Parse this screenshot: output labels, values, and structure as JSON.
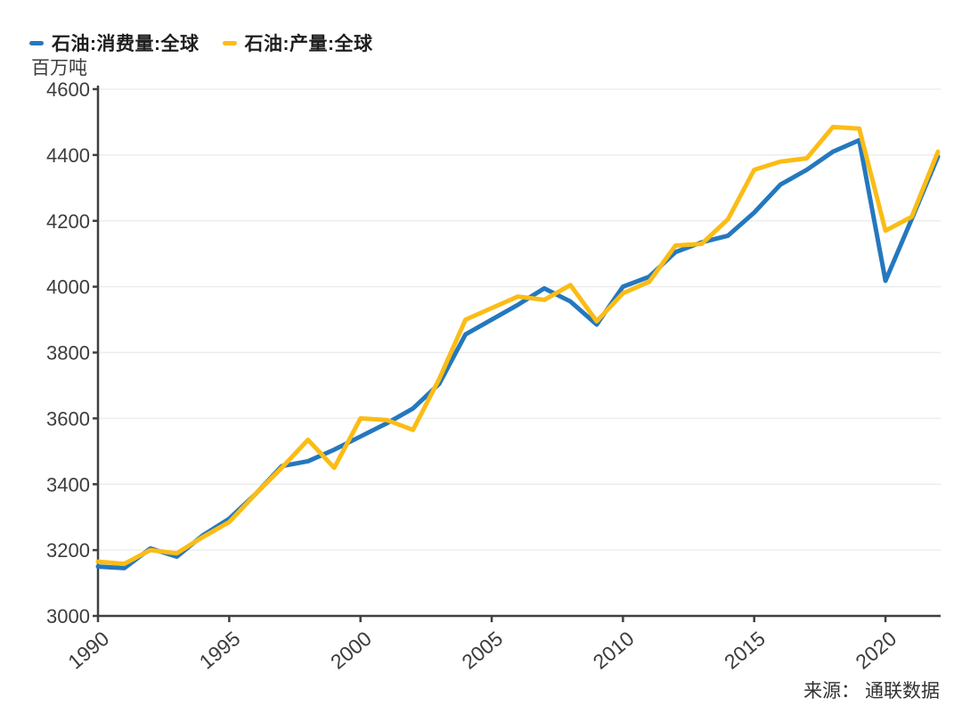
{
  "source": {
    "label": "来源： 通联数据"
  },
  "colors": {
    "consumption_line": "#2478be",
    "production_line": "#fbbc16",
    "axis": "#404040",
    "grid": "#ededed",
    "tick_label": "#3d3d3d",
    "legend_text": "#1f1f1f"
  },
  "chart_data": {
    "type": "line",
    "title": "",
    "xlabel": "",
    "ylabel": "百万吨",
    "xlim": [
      1990,
      2022
    ],
    "ylim": [
      3000,
      4600
    ],
    "y_ticks": [
      3000,
      3200,
      3400,
      3600,
      3800,
      4000,
      4200,
      4400,
      4600
    ],
    "x_ticks": [
      1990,
      1995,
      2000,
      2005,
      2010,
      2015,
      2020
    ],
    "grid": "horizontal",
    "legend_position": "top-left",
    "x": [
      1990,
      1991,
      1992,
      1993,
      1994,
      1995,
      1996,
      1997,
      1998,
      1999,
      2000,
      2001,
      2002,
      2003,
      2004,
      2005,
      2006,
      2007,
      2008,
      2009,
      2010,
      2011,
      2012,
      2013,
      2014,
      2015,
      2016,
      2017,
      2018,
      2019,
      2020,
      2021,
      2022
    ],
    "series": [
      {
        "name": "石油:消费量:全球",
        "color": "#2478be",
        "values": [
          3150,
          3145,
          3205,
          3180,
          3245,
          3295,
          3370,
          3455,
          3470,
          3505,
          3545,
          3585,
          3630,
          3705,
          3855,
          3900,
          3945,
          3995,
          3955,
          3885,
          4000,
          4030,
          4105,
          4135,
          4155,
          4225,
          4310,
          4355,
          4410,
          4445,
          4018,
          4205,
          4395
        ]
      },
      {
        "name": "石油:产量:全球",
        "color": "#fbbc16",
        "values": [
          3165,
          3158,
          3200,
          3190,
          3240,
          3285,
          3370,
          3450,
          3535,
          3450,
          3600,
          3595,
          3565,
          3720,
          3900,
          3935,
          3970,
          3960,
          4005,
          3895,
          3980,
          4015,
          4125,
          4130,
          4205,
          4355,
          4380,
          4390,
          4485,
          4480,
          4170,
          4212,
          4410
        ]
      }
    ]
  }
}
